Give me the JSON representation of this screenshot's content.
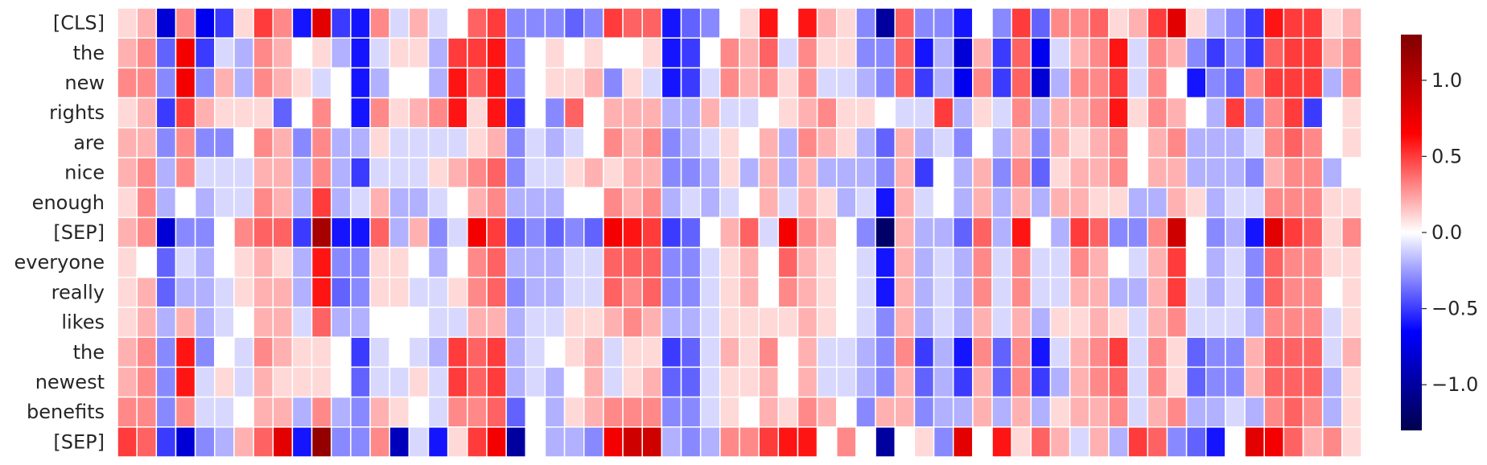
{
  "chart_data": {
    "type": "heatmap",
    "title": "",
    "xlabel": "",
    "ylabel": "",
    "rows": [
      "[CLS]",
      "the",
      "new",
      "rights",
      "are",
      "nice",
      "enough",
      "[SEP]",
      "everyone",
      "really",
      "likes",
      "the",
      "newest",
      "benefits",
      "[SEP]"
    ],
    "n_columns": 64,
    "colormap": "seismic",
    "vmin": -1.3,
    "vmax": 1.3,
    "colorbar_ticks": [
      1.0,
      0.5,
      0.0,
      -0.5,
      -1.0
    ],
    "colorbar_tick_labels": [
      "1.0",
      "0.5",
      "0.0",
      "−0.5",
      "−1.0"
    ],
    "values": [
      [
        0.1,
        0.2,
        -0.8,
        0.3,
        -0.7,
        -0.5,
        0.1,
        0.5,
        0.3,
        -0.6,
        0.8,
        -0.5,
        -0.6,
        0.3,
        -0.1,
        0.2,
        -0.1,
        0.0,
        0.4,
        0.5,
        -0.3,
        -0.3,
        -0.3,
        -0.4,
        -0.3,
        0.5,
        0.4,
        0.4,
        -0.6,
        -0.4,
        -0.3,
        0.0,
        0.1,
        0.6,
        0.0,
        0.6,
        0.2,
        0.1,
        -0.3,
        -1.0,
        0.4,
        -0.3,
        -0.3,
        -0.6,
        0.0,
        -0.3,
        0.5,
        -0.4,
        0.3,
        0.3,
        0.4,
        0.1,
        0.2,
        0.5,
        0.8,
        0.1,
        -0.2,
        -0.3,
        -0.5,
        0.6,
        0.5,
        0.5,
        0.1,
        0.2
      ],
      [
        0.2,
        0.3,
        -0.4,
        0.7,
        -0.5,
        -0.1,
        -0.2,
        0.3,
        0.2,
        0.0,
        0.1,
        -0.2,
        -0.6,
        -0.1,
        0.1,
        0.1,
        -0.2,
        0.5,
        0.5,
        0.6,
        -0.3,
        0.0,
        0.1,
        0.0,
        0.1,
        0.0,
        0.0,
        0.1,
        -0.6,
        -0.5,
        0.0,
        0.3,
        0.2,
        0.4,
        -0.1,
        0.3,
        0.1,
        0.1,
        -0.3,
        -0.3,
        0.4,
        -0.6,
        -0.2,
        -0.8,
        0.2,
        -0.5,
        0.4,
        -0.7,
        -0.1,
        0.2,
        0.3,
        0.6,
        -0.1,
        0.3,
        0.2,
        -0.3,
        -0.5,
        -0.3,
        -0.5,
        0.4,
        0.5,
        0.5,
        0.2,
        0.3
      ],
      [
        0.3,
        0.3,
        -0.3,
        0.7,
        -0.3,
        0.2,
        -0.2,
        0.3,
        0.2,
        0.1,
        -0.1,
        0.0,
        -0.6,
        -0.2,
        0.0,
        0.0,
        -0.2,
        0.6,
        0.4,
        0.6,
        -0.3,
        0.0,
        0.1,
        0.1,
        0.2,
        -0.3,
        0.1,
        -0.1,
        -0.6,
        -0.5,
        -0.1,
        0.3,
        0.2,
        0.3,
        0.1,
        0.3,
        -0.1,
        -0.1,
        -0.2,
        -0.3,
        0.4,
        -0.5,
        -0.2,
        -0.7,
        0.3,
        -0.5,
        0.4,
        -0.8,
        -0.2,
        0.3,
        0.3,
        0.5,
        -0.1,
        0.3,
        0.0,
        -0.6,
        -0.3,
        -0.4,
        0.3,
        0.5,
        0.5,
        0.5,
        -0.2,
        0.3
      ],
      [
        0.1,
        0.2,
        -0.5,
        0.5,
        0.2,
        0.1,
        0.1,
        0.1,
        -0.4,
        0.0,
        0.3,
        0.0,
        -0.6,
        0.3,
        0.1,
        0.2,
        0.3,
        0.6,
        0.1,
        0.6,
        -0.5,
        0.0,
        -0.3,
        0.4,
        0.0,
        0.2,
        0.2,
        0.2,
        -0.2,
        -0.2,
        0.2,
        -0.1,
        -0.1,
        0.0,
        0.1,
        0.2,
        0.3,
        0.1,
        0.1,
        0.0,
        -0.1,
        -0.1,
        0.5,
        -0.2,
        0.1,
        -0.1,
        0.3,
        -0.2,
        0.2,
        0.2,
        0.3,
        0.6,
        0.1,
        0.3,
        0.2,
        0.0,
        -0.2,
        0.5,
        -0.3,
        0.3,
        0.5,
        -0.5,
        0.0,
        0.1
      ],
      [
        0.2,
        0.2,
        -0.3,
        0.3,
        -0.3,
        -0.3,
        0.0,
        0.3,
        0.2,
        -0.3,
        0.3,
        -0.2,
        -0.2,
        0.1,
        -0.1,
        -0.1,
        -0.1,
        -0.1,
        0.1,
        0.2,
        -0.3,
        -0.1,
        -0.2,
        -0.1,
        0.0,
        0.3,
        0.2,
        0.3,
        -0.3,
        -0.2,
        -0.1,
        0.1,
        0.0,
        0.2,
        -0.2,
        0.3,
        0.2,
        0.1,
        -0.2,
        -0.4,
        0.2,
        -0.2,
        -0.1,
        -0.3,
        0.0,
        -0.2,
        0.2,
        -0.3,
        0.2,
        0.1,
        0.2,
        0.3,
        0.0,
        0.2,
        0.3,
        -0.2,
        -0.2,
        -0.2,
        -0.1,
        0.3,
        0.4,
        0.3,
        0.0,
        0.1
      ],
      [
        0.2,
        0.3,
        -0.2,
        0.3,
        -0.1,
        -0.1,
        -0.1,
        0.2,
        0.2,
        -0.2,
        0.3,
        -0.2,
        -0.5,
        -0.1,
        -0.1,
        -0.1,
        0.1,
        0.2,
        0.3,
        0.4,
        -0.3,
        -0.1,
        -0.1,
        0.1,
        0.2,
        0.1,
        0.2,
        0.2,
        -0.3,
        -0.3,
        -0.2,
        0.1,
        -0.2,
        0.2,
        -0.2,
        0.2,
        -0.2,
        -0.2,
        -0.2,
        -0.3,
        0.2,
        -0.5,
        0.0,
        -0.2,
        0.2,
        -0.3,
        0.3,
        -0.4,
        0.1,
        0.2,
        0.2,
        0.3,
        0.0,
        0.2,
        0.2,
        -0.2,
        -0.2,
        -0.2,
        -0.3,
        0.2,
        0.3,
        0.3,
        -0.2,
        0.0
      ],
      [
        0.1,
        0.3,
        -0.2,
        0.0,
        -0.2,
        -0.1,
        -0.1,
        0.3,
        0.2,
        -0.2,
        0.5,
        -0.2,
        -0.1,
        0.2,
        -0.2,
        -0.2,
        -0.1,
        0.0,
        0.2,
        0.3,
        -0.2,
        -0.2,
        -0.2,
        0.0,
        0.0,
        0.3,
        0.2,
        0.3,
        -0.2,
        -0.1,
        -0.2,
        -0.1,
        0.0,
        0.2,
        -0.1,
        0.2,
        0.1,
        -0.2,
        -0.1,
        -0.6,
        0.2,
        -0.1,
        0.0,
        -0.2,
        0.2,
        -0.2,
        0.2,
        -0.2,
        0.2,
        0.2,
        0.1,
        0.1,
        -0.2,
        -0.2,
        0.2,
        0.1,
        -0.2,
        -0.1,
        -0.1,
        0.3,
        0.3,
        0.3,
        0.1,
        0.1
      ],
      [
        0.2,
        0.3,
        -0.8,
        -0.3,
        -0.3,
        0.0,
        0.3,
        0.4,
        0.4,
        -0.5,
        1.1,
        -0.6,
        -0.6,
        0.4,
        -0.2,
        0.2,
        -0.3,
        -0.1,
        0.7,
        0.5,
        -0.4,
        -0.3,
        -0.4,
        -0.3,
        -0.4,
        0.7,
        0.6,
        0.5,
        -0.5,
        -0.4,
        0.0,
        0.2,
        0.4,
        -0.1,
        0.7,
        0.3,
        0.2,
        0.0,
        -0.3,
        -1.2,
        0.2,
        -0.2,
        -0.2,
        -0.4,
        0.4,
        -0.2,
        0.6,
        0.0,
        -0.2,
        0.5,
        0.4,
        -0.3,
        -0.3,
        0.3,
        0.9,
        0.0,
        -0.3,
        -0.2,
        -0.6,
        0.8,
        0.5,
        0.4,
        0.1,
        0.3
      ],
      [
        0.1,
        0.0,
        -0.4,
        -0.1,
        -0.2,
        0.0,
        0.1,
        0.2,
        0.1,
        -0.2,
        0.6,
        -0.3,
        -0.3,
        0.1,
        0.1,
        0.0,
        -0.2,
        0.0,
        0.3,
        0.4,
        -0.2,
        -0.2,
        -0.2,
        -0.1,
        -0.1,
        0.4,
        0.4,
        0.4,
        -0.3,
        -0.3,
        -0.1,
        0.1,
        0.2,
        0.0,
        0.4,
        0.2,
        0.1,
        0.0,
        -0.1,
        -0.6,
        0.2,
        -0.2,
        -0.1,
        -0.2,
        0.3,
        -0.1,
        0.3,
        -0.1,
        -0.1,
        0.3,
        0.2,
        0.0,
        -0.1,
        0.2,
        0.5,
        0.0,
        -0.2,
        -0.1,
        -0.3,
        0.4,
        0.3,
        0.3,
        0.1,
        0.1
      ],
      [
        0.1,
        0.2,
        -0.4,
        -0.2,
        -0.2,
        -0.1,
        0.1,
        0.2,
        0.2,
        -0.2,
        0.6,
        -0.4,
        -0.3,
        0.1,
        0.1,
        -0.1,
        -0.1,
        0.1,
        0.3,
        0.4,
        -0.3,
        -0.2,
        -0.2,
        -0.1,
        -0.1,
        0.4,
        0.3,
        0.4,
        -0.3,
        -0.3,
        -0.1,
        0.1,
        0.2,
        0.0,
        0.3,
        0.2,
        0.1,
        0.0,
        -0.1,
        -0.6,
        0.2,
        -0.2,
        -0.1,
        -0.2,
        0.3,
        -0.1,
        0.3,
        -0.1,
        -0.1,
        0.2,
        0.2,
        -0.2,
        -0.2,
        0.2,
        0.5,
        -0.1,
        -0.2,
        -0.1,
        -0.3,
        0.4,
        0.3,
        0.3,
        0.0,
        0.1
      ],
      [
        0.1,
        0.2,
        -0.2,
        0.2,
        -0.2,
        -0.1,
        0.0,
        0.2,
        0.2,
        -0.1,
        0.4,
        -0.2,
        -0.2,
        0.0,
        0.0,
        0.0,
        -0.1,
        -0.1,
        0.2,
        0.2,
        -0.2,
        -0.1,
        -0.1,
        0.1,
        0.1,
        0.2,
        0.3,
        0.2,
        -0.2,
        -0.2,
        -0.1,
        0.1,
        0.1,
        0.1,
        0.1,
        0.2,
        0.1,
        0.0,
        -0.1,
        -0.3,
        0.2,
        -0.2,
        -0.1,
        -0.2,
        0.2,
        -0.1,
        0.2,
        -0.2,
        0.1,
        0.1,
        0.2,
        0.1,
        -0.1,
        0.2,
        0.3,
        -0.1,
        -0.1,
        -0.1,
        -0.2,
        0.3,
        0.3,
        0.3,
        -0.1,
        0.1
      ],
      [
        0.2,
        0.3,
        -0.3,
        0.6,
        -0.3,
        0.0,
        -0.1,
        0.3,
        0.2,
        0.1,
        0.1,
        0.0,
        -0.5,
        -0.1,
        0.0,
        -0.1,
        -0.2,
        0.5,
        0.4,
        0.5,
        -0.2,
        -0.1,
        0.0,
        0.1,
        0.2,
        -0.1,
        0.1,
        0.1,
        -0.5,
        -0.4,
        -0.1,
        0.2,
        0.1,
        0.3,
        0.0,
        0.2,
        -0.1,
        -0.1,
        -0.2,
        -0.3,
        0.3,
        -0.5,
        -0.2,
        -0.6,
        0.3,
        -0.4,
        0.3,
        -0.6,
        -0.1,
        0.2,
        0.3,
        0.5,
        -0.1,
        0.3,
        0.1,
        -0.4,
        -0.3,
        -0.3,
        0.2,
        0.4,
        0.4,
        0.4,
        -0.1,
        0.2
      ],
      [
        0.2,
        0.3,
        -0.3,
        0.6,
        -0.1,
        0.1,
        -0.1,
        0.2,
        0.1,
        0.1,
        0.1,
        0.0,
        -0.4,
        -0.1,
        -0.1,
        0.1,
        -0.1,
        0.5,
        0.4,
        0.5,
        -0.2,
        -0.1,
        -0.2,
        0.0,
        0.2,
        -0.1,
        0.1,
        0.2,
        -0.4,
        -0.4,
        -0.1,
        0.1,
        0.1,
        0.2,
        0.0,
        0.2,
        -0.1,
        -0.1,
        -0.2,
        -0.3,
        0.2,
        -0.4,
        -0.2,
        -0.5,
        0.2,
        -0.4,
        0.3,
        -0.5,
        -0.2,
        0.2,
        0.3,
        0.4,
        -0.1,
        0.3,
        0.1,
        -0.4,
        -0.3,
        -0.3,
        0.2,
        0.4,
        0.4,
        0.4,
        -0.2,
        0.1
      ],
      [
        0.3,
        0.3,
        -0.3,
        0.3,
        -0.1,
        -0.1,
        0.0,
        0.2,
        0.2,
        -0.2,
        0.3,
        -0.2,
        -0.3,
        0.2,
        0.1,
        0.0,
        -0.1,
        0.3,
        0.3,
        0.4,
        -0.4,
        0.0,
        -0.2,
        0.1,
        0.2,
        0.3,
        0.3,
        0.3,
        -0.3,
        -0.3,
        -0.1,
        0.1,
        0.0,
        0.2,
        0.1,
        0.3,
        0.2,
        0.0,
        -0.3,
        0.2,
        0.2,
        -0.3,
        -0.2,
        -0.2,
        0.2,
        -0.2,
        0.2,
        -0.2,
        0.1,
        0.2,
        0.2,
        0.3,
        -0.1,
        0.2,
        0.3,
        -0.2,
        -0.2,
        -0.1,
        -0.2,
        0.3,
        0.4,
        0.3,
        -0.2,
        0.1
      ],
      [
        0.5,
        0.4,
        -0.5,
        -0.8,
        -0.3,
        -0.2,
        0.2,
        0.4,
        0.8,
        -0.6,
        1.2,
        -0.3,
        -0.3,
        0.3,
        -0.9,
        -0.1,
        -0.6,
        0.1,
        0.5,
        0.7,
        -1.0,
        0.0,
        -0.2,
        -0.2,
        -0.3,
        0.7,
        0.9,
        0.9,
        -0.2,
        -0.3,
        -0.2,
        0.3,
        0.3,
        0.5,
        0.6,
        0.6,
        0.0,
        0.3,
        0.0,
        -1.0,
        0.0,
        0.1,
        -0.3,
        0.8,
        0.0,
        0.6,
        0.1,
        0.4,
        0.2,
        -0.1,
        0.2,
        -0.2,
        0.5,
        0.4,
        -0.3,
        -0.4,
        -0.6,
        0.0,
        0.8,
        0.7,
        0.4,
        0.2,
        0.3,
        0.1
      ]
    ]
  }
}
